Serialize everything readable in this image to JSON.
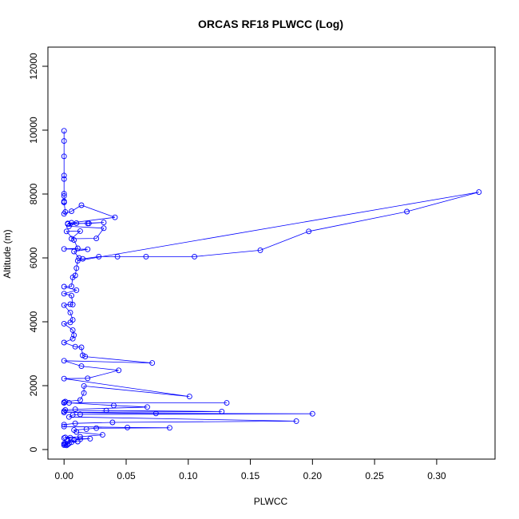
{
  "chart_data": {
    "type": "line",
    "title": "ORCAS RF18 PLWCC (Log)",
    "xlabel": "PLWCC",
    "ylabel": "Altitude (m)",
    "xlim": [
      -0.013,
      0.347
    ],
    "ylim": [
      -300,
      12600
    ],
    "x_ticks": [
      0.0,
      0.05,
      0.1,
      0.15,
      0.2,
      0.25,
      0.3
    ],
    "x_tick_labels": [
      "0.00",
      "0.05",
      "0.10",
      "0.15",
      "0.20",
      "0.25",
      "0.30"
    ],
    "y_ticks": [
      0,
      2000,
      4000,
      6000,
      8000,
      10000,
      12000
    ],
    "y_tick_labels": [
      "0",
      "2000",
      "4000",
      "6000",
      "8000",
      "10000",
      "12000"
    ],
    "grid": false,
    "legend": "none",
    "color": "#0000ff",
    "points": [
      {
        "x": 0.0,
        "y": 9980
      },
      {
        "x": 0.0,
        "y": 9660
      },
      {
        "x": 0.0,
        "y": 9180
      },
      {
        "x": 0.0,
        "y": 8580
      },
      {
        "x": 0.0,
        "y": 8470
      },
      {
        "x": 0.0,
        "y": 8010
      },
      {
        "x": 0.0,
        "y": 7940
      },
      {
        "x": 0.0,
        "y": 7770
      },
      {
        "x": 0.0,
        "y": 7740
      },
      {
        "x": 0.0,
        "y": 7740
      },
      {
        "x": 0.001,
        "y": 7440
      },
      {
        "x": 0.0,
        "y": 7380
      },
      {
        "x": 0.006,
        "y": 7460
      },
      {
        "x": 0.014,
        "y": 7650
      },
      {
        "x": 0.041,
        "y": 7270
      },
      {
        "x": 0.006,
        "y": 7100
      },
      {
        "x": 0.003,
        "y": 7080
      },
      {
        "x": 0.02,
        "y": 7080
      },
      {
        "x": 0.019,
        "y": 7080
      },
      {
        "x": 0.032,
        "y": 7110
      },
      {
        "x": 0.003,
        "y": 7060
      },
      {
        "x": 0.01,
        "y": 7090
      },
      {
        "x": 0.004,
        "y": 6990
      },
      {
        "x": 0.032,
        "y": 6930
      },
      {
        "x": 0.026,
        "y": 6610
      },
      {
        "x": 0.006,
        "y": 6600
      },
      {
        "x": 0.013,
        "y": 6840
      },
      {
        "x": 0.002,
        "y": 6830
      },
      {
        "x": 0.008,
        "y": 6560
      },
      {
        "x": 0.011,
        "y": 6300
      },
      {
        "x": 0.0,
        "y": 6280
      },
      {
        "x": 0.019,
        "y": 6270
      },
      {
        "x": 0.008,
        "y": 6200
      },
      {
        "x": 0.012,
        "y": 6000
      },
      {
        "x": 0.015,
        "y": 5970
      },
      {
        "x": 0.028,
        "y": 6040
      },
      {
        "x": 0.043,
        "y": 6040
      },
      {
        "x": 0.066,
        "y": 6040
      },
      {
        "x": 0.105,
        "y": 6040
      },
      {
        "x": 0.158,
        "y": 6240
      },
      {
        "x": 0.197,
        "y": 6830
      },
      {
        "x": 0.276,
        "y": 7450
      },
      {
        "x": 0.334,
        "y": 8060
      },
      {
        "x": 0.011,
        "y": 5910
      },
      {
        "x": 0.01,
        "y": 5680
      },
      {
        "x": 0.009,
        "y": 5450
      },
      {
        "x": 0.007,
        "y": 5390
      },
      {
        "x": 0.006,
        "y": 5110
      },
      {
        "x": 0.0,
        "y": 5100
      },
      {
        "x": 0.01,
        "y": 4990
      },
      {
        "x": 0.0,
        "y": 4880
      },
      {
        "x": 0.006,
        "y": 4820
      },
      {
        "x": 0.007,
        "y": 4540
      },
      {
        "x": 0.005,
        "y": 4550
      },
      {
        "x": 0.0,
        "y": 4520
      },
      {
        "x": 0.005,
        "y": 4290
      },
      {
        "x": 0.007,
        "y": 4060
      },
      {
        "x": 0.005,
        "y": 3980
      },
      {
        "x": 0.0,
        "y": 3940
      },
      {
        "x": 0.007,
        "y": 3740
      },
      {
        "x": 0.008,
        "y": 3580
      },
      {
        "x": 0.007,
        "y": 3470
      },
      {
        "x": 0.0,
        "y": 3350
      },
      {
        "x": 0.009,
        "y": 3220
      },
      {
        "x": 0.014,
        "y": 3200
      },
      {
        "x": 0.015,
        "y": 2950
      },
      {
        "x": 0.017,
        "y": 2910
      },
      {
        "x": 0.071,
        "y": 2710
      },
      {
        "x": 0.0,
        "y": 2780
      },
      {
        "x": 0.014,
        "y": 2610
      },
      {
        "x": 0.044,
        "y": 2480
      },
      {
        "x": 0.019,
        "y": 2230
      },
      {
        "x": 0.0,
        "y": 2220
      },
      {
        "x": 0.101,
        "y": 1660
      },
      {
        "x": 0.016,
        "y": 1990
      },
      {
        "x": 0.016,
        "y": 1770
      },
      {
        "x": 0.013,
        "y": 1550
      },
      {
        "x": 0.001,
        "y": 1500
      },
      {
        "x": 0.0,
        "y": 1480
      },
      {
        "x": 0.0,
        "y": 1460
      },
      {
        "x": 0.131,
        "y": 1460
      },
      {
        "x": 0.004,
        "y": 1460
      },
      {
        "x": 0.04,
        "y": 1380
      },
      {
        "x": 0.067,
        "y": 1330
      },
      {
        "x": 0.009,
        "y": 1260
      },
      {
        "x": 0.001,
        "y": 1240
      },
      {
        "x": 0.0,
        "y": 1200
      },
      {
        "x": 0.034,
        "y": 1220
      },
      {
        "x": 0.127,
        "y": 1190
      },
      {
        "x": 0.0,
        "y": 1160
      },
      {
        "x": 0.074,
        "y": 1130
      },
      {
        "x": 0.2,
        "y": 1120
      },
      {
        "x": 0.013,
        "y": 1100
      },
      {
        "x": 0.007,
        "y": 1080
      },
      {
        "x": 0.004,
        "y": 1020
      },
      {
        "x": 0.187,
        "y": 890
      },
      {
        "x": 0.039,
        "y": 850
      },
      {
        "x": 0.009,
        "y": 820
      },
      {
        "x": 0.0,
        "y": 780
      },
      {
        "x": 0.0,
        "y": 720
      },
      {
        "x": 0.051,
        "y": 690
      },
      {
        "x": 0.085,
        "y": 680
      },
      {
        "x": 0.026,
        "y": 670
      },
      {
        "x": 0.018,
        "y": 640
      },
      {
        "x": 0.008,
        "y": 610
      },
      {
        "x": 0.01,
        "y": 550
      },
      {
        "x": 0.031,
        "y": 460
      },
      {
        "x": 0.013,
        "y": 400
      },
      {
        "x": 0.001,
        "y": 380
      },
      {
        "x": 0.005,
        "y": 370
      },
      {
        "x": 0.0,
        "y": 360
      },
      {
        "x": 0.021,
        "y": 340
      },
      {
        "x": 0.013,
        "y": 320
      },
      {
        "x": 0.008,
        "y": 300
      },
      {
        "x": 0.003,
        "y": 280
      },
      {
        "x": 0.011,
        "y": 250
      },
      {
        "x": 0.006,
        "y": 230
      },
      {
        "x": 0.001,
        "y": 200
      },
      {
        "x": 0.004,
        "y": 190
      },
      {
        "x": 0.0,
        "y": 180
      },
      {
        "x": 0.003,
        "y": 160
      },
      {
        "x": 0.001,
        "y": 150
      },
      {
        "x": 0.0,
        "y": 140
      },
      {
        "x": 0.002,
        "y": 130
      }
    ]
  }
}
